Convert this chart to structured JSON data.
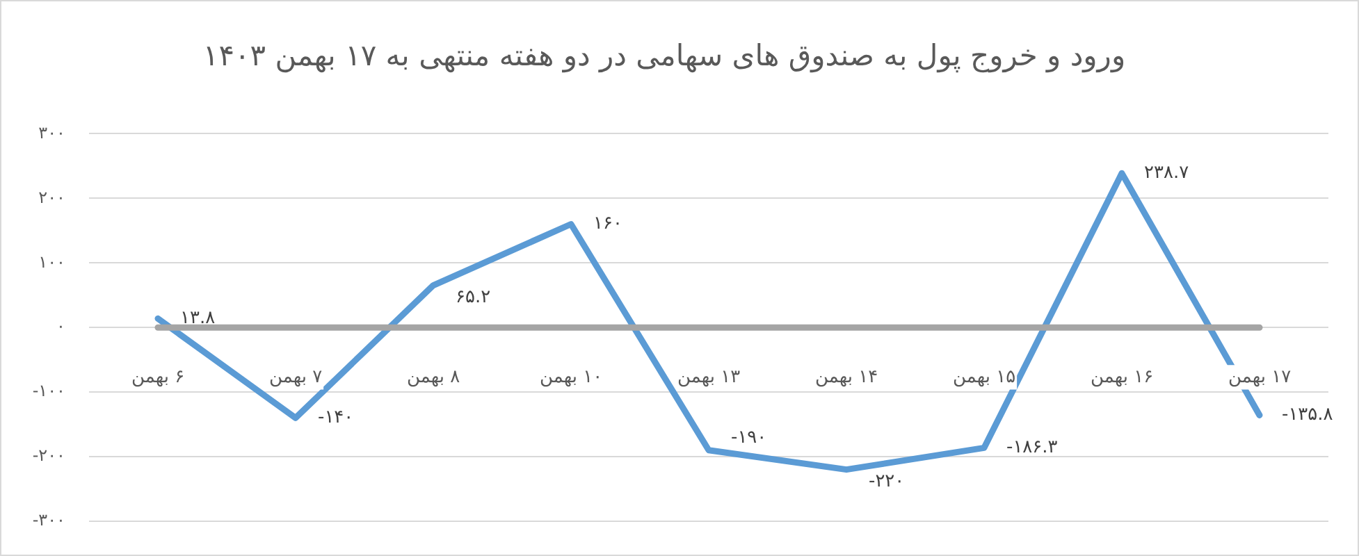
{
  "chart_data": {
    "type": "line",
    "title": "ورود و خروج پول به صندوق های سهامی در دو هفته منتهی به ۱۷ بهمن ۱۴۰۳",
    "categories": [
      "۶ بهمن",
      "۷ بهمن",
      "۸ بهمن",
      "۱۰ بهمن",
      "۱۳ بهمن",
      "۱۴ بهمن",
      "۱۵ بهمن",
      "۱۶ بهمن",
      "۱۷ بهمن"
    ],
    "series": [
      {
        "color": "#5b9bd5",
        "values": [
          13.8,
          -140,
          65.2,
          160,
          -190,
          -220,
          -186.3,
          238.7,
          -135.8
        ],
        "value_labels": [
          "۱۳.۸",
          "-۱۴۰",
          "۶۵.۲",
          "۱۶۰",
          "-۱۹۰",
          "-۲۲۰",
          "-۱۸۶.۳",
          "۲۳۸.۷",
          "-۱۳۵.۸"
        ]
      },
      {
        "color": "#a5a5a5",
        "values": [
          0,
          0,
          0,
          0,
          0,
          0,
          0,
          0,
          0
        ]
      }
    ],
    "ylim": [
      -300,
      300
    ],
    "yticks": [
      {
        "value": 300,
        "label": "۳۰۰"
      },
      {
        "value": 200,
        "label": "۲۰۰"
      },
      {
        "value": 100,
        "label": "۱۰۰"
      },
      {
        "value": 0,
        "label": "۰"
      },
      {
        "value": -100,
        "label": "-۱۰۰"
      },
      {
        "value": -200,
        "label": "-۲۰۰"
      },
      {
        "value": -300,
        "label": "-۳۰۰"
      }
    ],
    "grid": "y",
    "legend": false,
    "marker": "none",
    "line_style": "solid"
  }
}
